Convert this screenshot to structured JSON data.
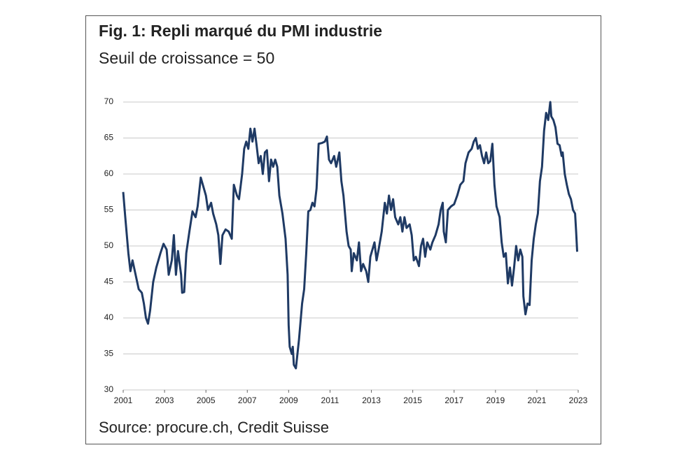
{
  "chart_data": {
    "type": "line",
    "title": "Fig. 1: Repli marqué du PMI industrie",
    "subtitle": "Seuil de croissance = 50",
    "source": "Source: procure.ch, Credit Suisse",
    "xlim": [
      2001,
      2023
    ],
    "xticks": [
      2001,
      2003,
      2005,
      2007,
      2009,
      2011,
      2013,
      2015,
      2017,
      2019,
      2021,
      2023
    ],
    "ylim": [
      30,
      70
    ],
    "yticks": [
      30,
      35,
      40,
      45,
      50,
      55,
      60,
      65,
      70
    ],
    "grid": true,
    "series": [
      {
        "color": "#1f3a64",
        "x": [
          2001.0,
          2001.1,
          2001.25,
          2001.35,
          2001.45,
          2001.6,
          2001.75,
          2001.9,
          2002.0,
          2002.1,
          2002.2,
          2002.3,
          2002.45,
          2002.6,
          2002.8,
          2002.95,
          2003.1,
          2003.2,
          2003.35,
          2003.45,
          2003.55,
          2003.65,
          2003.8,
          2003.85,
          2003.95,
          2004.05,
          2004.2,
          2004.35,
          2004.5,
          2004.6,
          2004.75,
          2004.9,
          2005.0,
          2005.1,
          2005.25,
          2005.35,
          2005.5,
          2005.6,
          2005.7,
          2005.8,
          2005.95,
          2006.1,
          2006.25,
          2006.35,
          2006.5,
          2006.6,
          2006.75,
          2006.85,
          2006.95,
          2007.05,
          2007.15,
          2007.25,
          2007.35,
          2007.45,
          2007.55,
          2007.65,
          2007.75,
          2007.85,
          2007.95,
          2008.05,
          2008.15,
          2008.25,
          2008.35,
          2008.45,
          2008.55,
          2008.7,
          2008.85,
          2008.95,
          2009.0,
          2009.05,
          2009.15,
          2009.2,
          2009.25,
          2009.35,
          2009.5,
          2009.65,
          2009.75,
          2009.85,
          2009.95,
          2010.05,
          2010.15,
          2010.25,
          2010.35,
          2010.45,
          2010.6,
          2010.75,
          2010.85,
          2010.95,
          2011.05,
          2011.2,
          2011.3,
          2011.45,
          2011.55,
          2011.65,
          2011.8,
          2011.9,
          2012.0,
          2012.05,
          2012.15,
          2012.3,
          2012.4,
          2012.5,
          2012.6,
          2012.75,
          2012.85,
          2012.95,
          2013.05,
          2013.15,
          2013.25,
          2013.35,
          2013.5,
          2013.65,
          2013.75,
          2013.85,
          2013.95,
          2014.05,
          2014.15,
          2014.3,
          2014.4,
          2014.5,
          2014.6,
          2014.7,
          2014.85,
          2014.95,
          2015.05,
          2015.15,
          2015.3,
          2015.4,
          2015.5,
          2015.6,
          2015.7,
          2015.85,
          2015.95,
          2016.1,
          2016.25,
          2016.35,
          2016.45,
          2016.5,
          2016.6,
          2016.7,
          2016.85,
          2017.0,
          2017.15,
          2017.3,
          2017.45,
          2017.55,
          2017.7,
          2017.85,
          2017.95,
          2018.05,
          2018.15,
          2018.25,
          2018.35,
          2018.45,
          2018.55,
          2018.65,
          2018.75,
          2018.85,
          2018.95,
          2019.05,
          2019.2,
          2019.3,
          2019.4,
          2019.5,
          2019.6,
          2019.7,
          2019.8,
          2019.9,
          2020.0,
          2020.1,
          2020.2,
          2020.3,
          2020.35,
          2020.45,
          2020.55,
          2020.65,
          2020.75,
          2020.85,
          2020.95,
          2021.05,
          2021.15,
          2021.25,
          2021.35,
          2021.45,
          2021.55,
          2021.65,
          2021.7,
          2021.8,
          2021.9,
          2022.0,
          2022.1,
          2022.2,
          2022.25,
          2022.35,
          2022.45,
          2022.55,
          2022.65,
          2022.75,
          2022.85,
          2022.9,
          2022.95
        ],
        "values": [
          57.5,
          54,
          49,
          46.5,
          48,
          46,
          44,
          43.5,
          42,
          40,
          39.2,
          41,
          45,
          47,
          49,
          50.3,
          49.5,
          46,
          48,
          51.5,
          46,
          49.3,
          46,
          43.5,
          43.6,
          49,
          52,
          54.8,
          54,
          55.5,
          59.5,
          58,
          57,
          55,
          56,
          54.5,
          53,
          51.5,
          47.5,
          51.5,
          52.3,
          52,
          51,
          58.5,
          57,
          56.5,
          60,
          63.5,
          64.5,
          63.5,
          66.3,
          64.5,
          66.3,
          64,
          61.5,
          62.5,
          60,
          63,
          63.3,
          59,
          62,
          61,
          62,
          61,
          57,
          54.5,
          51,
          46,
          39,
          36,
          35,
          36,
          33.5,
          33,
          37,
          42,
          44,
          49,
          54.8,
          55,
          56,
          55.5,
          58,
          64.2,
          64.3,
          64.5,
          65.2,
          62,
          61.5,
          62.5,
          61,
          63,
          59,
          57,
          52,
          50,
          49.5,
          46.5,
          49,
          48,
          50.5,
          46.5,
          47.5,
          46.5,
          45,
          48.5,
          49.5,
          50.5,
          48,
          49.5,
          52,
          56,
          54.5,
          57,
          55,
          56.5,
          54,
          53,
          54,
          52,
          54,
          52.5,
          53,
          51.5,
          48,
          48.5,
          47.2,
          50,
          51,
          48.5,
          50.5,
          49.5,
          50.5,
          51.5,
          53,
          55,
          56,
          52,
          50.5,
          55,
          55.5,
          55.8,
          57,
          58.5,
          59,
          61.5,
          63,
          63.5,
          64.5,
          65,
          63.5,
          64,
          62.5,
          61.5,
          63,
          61.5,
          61.8,
          64.2,
          58.5,
          55.5,
          54,
          50.5,
          48.5,
          49,
          44.8,
          47,
          44.5,
          47,
          50,
          48,
          49.5,
          48.5,
          43,
          40.5,
          42,
          41.8,
          48,
          51,
          53,
          54.5,
          59,
          61,
          66,
          68.5,
          67.5,
          70,
          68,
          67.5,
          66.5,
          64.2,
          64,
          62.5,
          63,
          60,
          58.5,
          57.2,
          56.5,
          55,
          54.5,
          52,
          49.2
        ]
      }
    ]
  }
}
